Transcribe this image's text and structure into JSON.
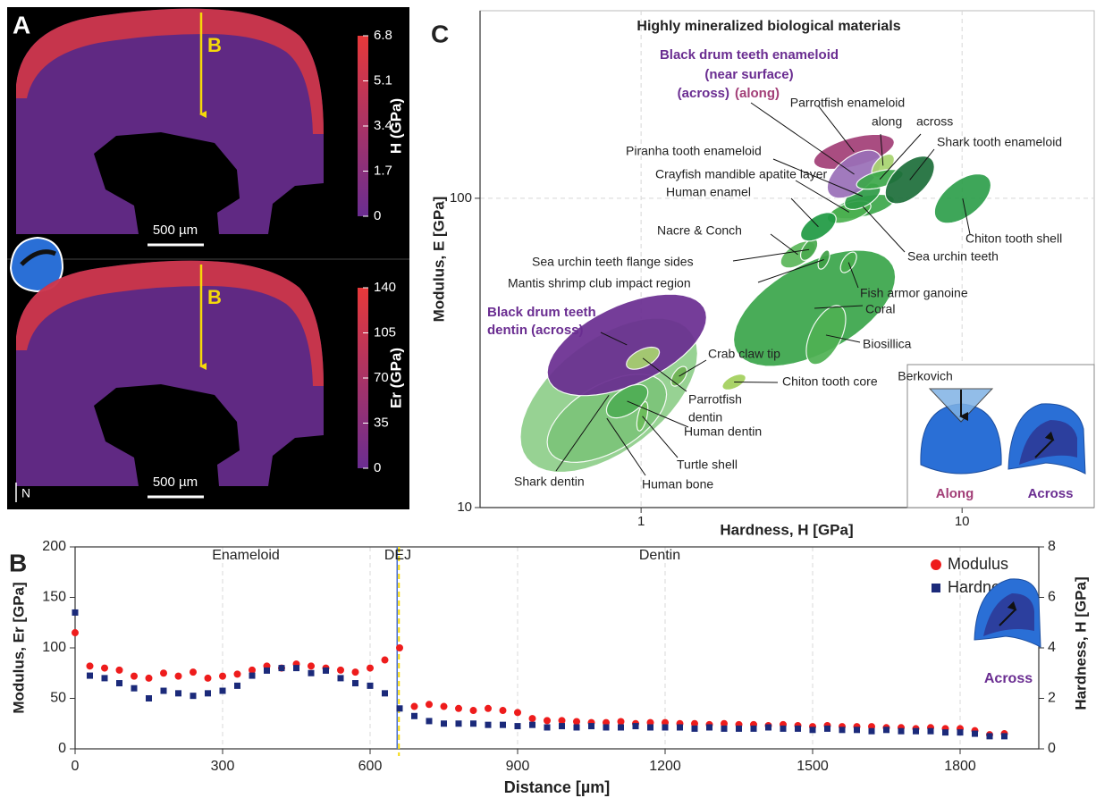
{
  "chart_data": [
    {
      "type": "heatmap",
      "panel": "A",
      "colors": [
        "#6a2d91",
        "#e8393a"
      ],
      "maps": [
        {
          "label": "H (GPa)",
          "lim": [
            0,
            6.8
          ],
          "ticks": [
            0,
            1.7,
            3.4,
            5.1,
            6.8
          ]
        },
        {
          "label": "Er (GPa)",
          "lim": [
            0,
            140
          ],
          "ticks": [
            0,
            35,
            70,
            105,
            140
          ]
        }
      ],
      "annotations": [
        "B",
        "500 µm",
        "N"
      ]
    },
    {
      "type": "ellipse",
      "panel": "C",
      "title": "Highly mineralized biological materials",
      "xlabel": "Hardness, H [GPa]",
      "ylabel": "Modulus, E [GPa]",
      "xscale": "log",
      "yscale": "log",
      "xlim": [
        0.315,
        25.8
      ],
      "ylim": [
        10,
        404
      ],
      "xticks": [
        1,
        10
      ],
      "yticks": [
        10,
        100
      ],
      "grid": true,
      "annotations": [
        "Black drum teeth enameloid",
        "(near surface)",
        "Parrotfish enameloid",
        "Berkovich",
        "Along",
        "Across"
      ],
      "annotation_colors": [
        "#6a2d91",
        "#6a2d91",
        "#222222",
        "#222222",
        "#a23e77",
        "#6a2d91"
      ],
      "materials": [
        {
          "label": [
            "Shark dentin"
          ],
          "h": [
            0.42,
            1.5
          ],
          "e": [
            13,
            41
          ],
          "color": "#8fcf8a"
        },
        {
          "label": [
            "Human bone"
          ],
          "h": [
            0.51,
            1.2
          ],
          "e": [
            14,
            27
          ],
          "color": "#7cc47a"
        },
        {
          "label": [
            "Black drum teeth",
            "dentin (across)"
          ],
          "h": [
            0.51,
            1.6
          ],
          "e": [
            23,
            49
          ],
          "color": "#6a2d91",
          "label_color": "#6a2d91"
        },
        {
          "label": [
            "Parrotfish",
            "dentin"
          ],
          "h": [
            0.9,
            1.14
          ],
          "e": [
            28,
            33
          ],
          "color": "#a8d46f"
        },
        {
          "label": [
            "Human dentin"
          ],
          "h": [
            0.78,
            1.05
          ],
          "e": [
            19.5,
            25
          ],
          "color": "#4fae54"
        },
        {
          "label": [
            "Turtle shell"
          ],
          "h": [
            0.97,
            1.05
          ],
          "e": [
            17.7,
            22
          ],
          "color": "#6cbd5a"
        },
        {
          "label": [
            "Crab claw tip"
          ],
          "h": [
            1.24,
            1.39
          ],
          "e": [
            24.7,
            28.6
          ],
          "color": "#6fb355"
        },
        {
          "label": [
            "Chiton tooth core"
          ],
          "h": [
            1.79,
            2.12
          ],
          "e": [
            24,
            27
          ],
          "color": "#a2d05c"
        },
        {
          "label": [
            "Coral"
          ],
          "h": [
            1.94,
            6.2
          ],
          "e": [
            28.6,
            68
          ],
          "color": "#3aa64a"
        },
        {
          "label": [
            "Biosillica"
          ],
          "h": [
            3.27,
            4.34
          ],
          "e": [
            29,
            45
          ],
          "color": "#4fb153"
        },
        {
          "label": [
            "Fish armor ganoine"
          ],
          "h": [
            4.18,
            4.69
          ],
          "e": [
            57.5,
            67
          ],
          "color": "#48ac4e"
        },
        {
          "label": [
            "Nacre & Conch"
          ],
          "h": [
            2.72,
            3.49
          ],
          "e": [
            59.5,
            72.7
          ],
          "color": "#5bb75a"
        },
        {
          "label": [
            "Sea urchin teeth flange sides"
          ],
          "h": [
            3.14,
            3.55
          ],
          "e": [
            63,
            74
          ],
          "color": "#4aaa4f"
        },
        {
          "label": [
            "Mantis shrimp club impact region"
          ],
          "h": [
            3.56,
            3.87
          ],
          "e": [
            59,
            68
          ],
          "color": "#3f9f46"
        },
        {
          "label": [
            "Sea urchin teeth"
          ],
          "h": [
            3.92,
            6.15
          ],
          "e": [
            85.8,
            103
          ],
          "color": "#3ca84a"
        },
        {
          "label": [
            "Crayfish mandible apatite layer"
          ],
          "h": [
            3.8,
            5.2
          ],
          "e": [
            83,
            98
          ],
          "color": "#4cb150"
        },
        {
          "label": [
            "Human enamel"
          ],
          "h": [
            3.14,
            4.05
          ],
          "e": [
            72.7,
            90
          ],
          "color": "#1f9a43"
        },
        {
          "label": [
            "Piranha tooth enameloid"
          ],
          "h": [
            4.3,
            5.57
          ],
          "e": [
            92,
            112
          ],
          "color": "#2e9b47"
        },
        {
          "label": [
            "(along)"
          ],
          "h": [
            3.45,
            6.15
          ],
          "e": [
            124,
            161
          ],
          "color": "#a23e77",
          "label_color": "#a23e77"
        },
        {
          "label": [
            "(across)"
          ],
          "h": [
            3.8,
            5.6
          ],
          "e": [
            100,
            143
          ],
          "color": "#9a6fb8",
          "label_color": "#6a2d91"
        },
        {
          "label": [
            "along"
          ],
          "h": [
            5.23,
            6.15
          ],
          "e": [
            117,
            139
          ],
          "color": "#a8d46f"
        },
        {
          "label": [
            "across"
          ],
          "h": [
            4.69,
            6.55
          ],
          "e": [
            107,
            124
          ],
          "color": "#3ca84a"
        },
        {
          "label": [
            "Shark tooth enameloid"
          ],
          "h": [
            5.76,
            8.2
          ],
          "e": [
            96,
            137
          ],
          "color": "#1d6e3a"
        },
        {
          "label": [
            "Chiton tooth shell"
          ],
          "h": [
            8.2,
            12.3
          ],
          "e": [
            83,
            120
          ],
          "color": "#2e9f4b"
        }
      ]
    },
    {
      "type": "scatter",
      "panel": "B",
      "xlabel": "Distance [µm]",
      "ylabel": "Modulus, Er [GPa]",
      "y2label": "Hardness, H [GPa]",
      "xlim": [
        0,
        1960
      ],
      "xticks": [
        0,
        300,
        600,
        900,
        1200,
        1500,
        1800
      ],
      "ylim": [
        0,
        200
      ],
      "yticks": [
        0,
        50,
        100,
        150,
        200
      ],
      "y2lim": [
        0,
        8
      ],
      "y2ticks": [
        0,
        2,
        4,
        6,
        8
      ],
      "grid": true,
      "legend": "upper right",
      "annotations": [
        "Enameloid",
        "DEJ",
        "Dentin",
        "Across"
      ],
      "vlines": [
        655
      ],
      "x": [
        0,
        30,
        60,
        90,
        120,
        150,
        180,
        210,
        240,
        270,
        300,
        330,
        360,
        390,
        420,
        450,
        480,
        510,
        540,
        570,
        600,
        630,
        660,
        690,
        720,
        750,
        780,
        810,
        840,
        870,
        900,
        930,
        960,
        990,
        1020,
        1050,
        1080,
        1110,
        1140,
        1170,
        1200,
        1230,
        1260,
        1290,
        1320,
        1350,
        1380,
        1410,
        1440,
        1470,
        1500,
        1530,
        1560,
        1590,
        1620,
        1650,
        1680,
        1710,
        1740,
        1770,
        1800,
        1830,
        1860,
        1890
      ],
      "series": [
        {
          "name": "Modulus",
          "color": "#ee1c1c",
          "marker": "circle",
          "values": [
            115,
            82,
            80,
            78,
            72,
            70,
            75,
            72,
            76,
            70,
            72,
            74,
            78,
            82,
            80,
            84,
            82,
            80,
            78,
            76,
            80,
            88,
            100,
            42,
            44,
            42,
            40,
            38,
            40,
            38,
            36,
            30,
            28,
            28,
            27,
            26,
            26,
            27,
            25,
            26,
            26,
            25,
            25,
            24,
            25,
            24,
            24,
            23,
            24,
            23,
            22,
            23,
            22,
            22,
            22,
            21,
            21,
            20,
            21,
            20,
            20,
            18,
            14,
            15
          ]
        },
        {
          "name": "Hardness",
          "color": "#1b2a7a",
          "marker": "square",
          "axis": "y2",
          "values": [
            5.4,
            2.9,
            2.8,
            2.6,
            2.4,
            2.0,
            2.3,
            2.2,
            2.1,
            2.2,
            2.3,
            2.5,
            2.9,
            3.1,
            3.2,
            3.2,
            3.0,
            3.1,
            2.8,
            2.6,
            2.5,
            2.2,
            1.6,
            1.3,
            1.1,
            1.0,
            1.0,
            1.0,
            0.95,
            0.95,
            0.9,
            0.95,
            0.85,
            0.9,
            0.85,
            0.9,
            0.85,
            0.85,
            0.9,
            0.85,
            0.85,
            0.85,
            0.8,
            0.85,
            0.8,
            0.8,
            0.8,
            0.85,
            0.8,
            0.8,
            0.75,
            0.8,
            0.75,
            0.75,
            0.7,
            0.75,
            0.7,
            0.7,
            0.7,
            0.65,
            0.65,
            0.6,
            0.5,
            0.5
          ]
        }
      ]
    }
  ]
}
